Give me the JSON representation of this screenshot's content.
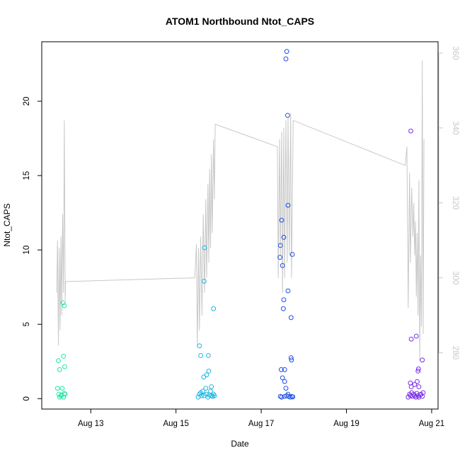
{
  "chart_data": {
    "type": "scatter",
    "title": "ATOM1 Northbound Ntot_CAPS",
    "xlabel": "Date",
    "ylabel": "Ntot_CAPS",
    "x_tick_labels": [
      "Aug 13",
      "Aug 15",
      "Aug 17",
      "Aug 19",
      "Aug 21"
    ],
    "x_ticks_day": [
      13,
      15,
      17,
      19,
      21
    ],
    "xlim_day": [
      11.85,
      21.15
    ],
    "ylim": [
      -0.7,
      24.0
    ],
    "y_ticks": [
      0,
      5,
      10,
      15,
      20
    ],
    "y2_ticks": [
      280,
      300,
      320,
      340,
      360
    ],
    "y2lim": [
      265,
      363
    ],
    "secondary_line_color": "#c8c8c8",
    "series": [
      {
        "color": "#22e6a8",
        "points": [
          [
            12.22,
            0.7
          ],
          [
            12.27,
            0.1
          ],
          [
            12.25,
            0.3
          ],
          [
            12.3,
            0.2
          ],
          [
            12.33,
            0.7
          ],
          [
            12.36,
            0.1
          ],
          [
            12.38,
            0.35
          ],
          [
            12.4,
            0.3
          ],
          [
            12.24,
            2.55
          ],
          [
            12.27,
            1.95
          ],
          [
            12.36,
            2.85
          ],
          [
            12.39,
            2.15
          ],
          [
            12.35,
            6.45
          ],
          [
            12.38,
            6.25
          ],
          [
            12.31,
            0.25
          ]
        ]
      },
      {
        "color": "#1fb5e3",
        "points": [
          [
            15.52,
            0.1
          ],
          [
            15.55,
            0.3
          ],
          [
            15.58,
            0.4
          ],
          [
            15.6,
            0.2
          ],
          [
            15.63,
            0.5
          ],
          [
            15.66,
            0.2
          ],
          [
            15.7,
            0.7
          ],
          [
            15.72,
            0.3
          ],
          [
            15.75,
            0.1
          ],
          [
            15.78,
            0.25
          ],
          [
            15.81,
            0.5
          ],
          [
            15.83,
            0.2
          ],
          [
            15.86,
            0.15
          ],
          [
            15.88,
            0.3
          ],
          [
            15.9,
            0.2
          ],
          [
            15.55,
            3.55
          ],
          [
            15.58,
            2.9
          ],
          [
            15.65,
            1.45
          ],
          [
            15.72,
            1.6
          ],
          [
            15.77,
            1.85
          ],
          [
            15.76,
            2.9
          ],
          [
            15.83,
            0.8
          ],
          [
            15.67,
            10.15
          ],
          [
            15.66,
            7.9
          ],
          [
            15.88,
            6.05
          ]
        ]
      },
      {
        "color": "#1f4fe6",
        "points": [
          [
            17.45,
            0.15
          ],
          [
            17.48,
            0.1
          ],
          [
            17.55,
            0.15
          ],
          [
            17.6,
            0.2
          ],
          [
            17.64,
            0.15
          ],
          [
            17.68,
            0.1
          ],
          [
            17.72,
            0.15
          ],
          [
            17.74,
            0.12
          ],
          [
            17.47,
            1.95
          ],
          [
            17.55,
            1.95
          ],
          [
            17.5,
            1.4
          ],
          [
            17.55,
            1.15
          ],
          [
            17.58,
            0.7
          ],
          [
            17.63,
            0.3
          ],
          [
            17.7,
            2.75
          ],
          [
            17.71,
            2.6
          ],
          [
            17.45,
            10.3
          ],
          [
            17.44,
            9.5
          ],
          [
            17.5,
            8.95
          ],
          [
            17.48,
            12.0
          ],
          [
            17.53,
            10.85
          ],
          [
            17.53,
            6.65
          ],
          [
            17.52,
            6.05
          ],
          [
            17.63,
            7.25
          ],
          [
            17.7,
            5.45
          ],
          [
            17.73,
            9.7
          ],
          [
            17.63,
            13.0
          ],
          [
            17.62,
            19.05
          ],
          [
            17.58,
            22.85
          ],
          [
            17.6,
            23.35
          ]
        ]
      },
      {
        "color": "#7a30e6",
        "points": [
          [
            20.45,
            0.1
          ],
          [
            20.48,
            0.3
          ],
          [
            20.5,
            0.2
          ],
          [
            20.53,
            0.4
          ],
          [
            20.55,
            0.15
          ],
          [
            20.58,
            0.3
          ],
          [
            20.6,
            0.2
          ],
          [
            20.63,
            0.1
          ],
          [
            20.65,
            0.35
          ],
          [
            20.68,
            0.2
          ],
          [
            20.7,
            0.1
          ],
          [
            20.73,
            0.25
          ],
          [
            20.75,
            0.3
          ],
          [
            20.78,
            0.15
          ],
          [
            20.8,
            0.4
          ],
          [
            20.5,
            1.05
          ],
          [
            20.52,
            0.8
          ],
          [
            20.6,
            0.95
          ],
          [
            20.66,
            1.15
          ],
          [
            20.7,
            0.8
          ],
          [
            20.68,
            1.85
          ],
          [
            20.69,
            2.0
          ],
          [
            20.78,
            2.6
          ],
          [
            20.52,
            4.0
          ],
          [
            20.64,
            4.2
          ],
          [
            20.51,
            18.0
          ]
        ]
      }
    ],
    "secondary_line": [
      [
        12.2,
        296
      ],
      [
        12.22,
        310
      ],
      [
        12.24,
        282
      ],
      [
        12.26,
        308
      ],
      [
        12.28,
        286
      ],
      [
        12.3,
        311
      ],
      [
        12.32,
        290
      ],
      [
        12.34,
        317
      ],
      [
        12.36,
        296
      ],
      [
        12.38,
        342
      ],
      [
        12.4,
        294
      ],
      [
        12.41,
        299
      ],
      [
        15.44,
        300
      ],
      [
        15.48,
        309
      ],
      [
        15.5,
        282
      ],
      [
        15.53,
        308
      ],
      [
        15.55,
        286
      ],
      [
        15.58,
        311
      ],
      [
        15.61,
        290
      ],
      [
        15.64,
        317
      ],
      [
        15.67,
        296
      ],
      [
        15.7,
        321
      ],
      [
        15.72,
        300
      ],
      [
        15.75,
        325
      ],
      [
        15.77,
        304
      ],
      [
        15.79,
        329
      ],
      [
        15.81,
        308
      ],
      [
        15.83,
        333
      ],
      [
        15.85,
        312
      ],
      [
        15.88,
        337
      ],
      [
        15.9,
        321
      ],
      [
        15.92,
        341
      ],
      [
        17.38,
        335
      ],
      [
        17.4,
        300
      ],
      [
        17.43,
        337
      ],
      [
        17.45,
        306
      ],
      [
        17.48,
        339
      ],
      [
        17.5,
        296
      ],
      [
        17.53,
        340
      ],
      [
        17.55,
        300
      ],
      [
        17.58,
        342
      ],
      [
        17.61,
        304
      ],
      [
        17.63,
        343
      ],
      [
        17.66,
        306
      ],
      [
        17.69,
        344
      ],
      [
        17.71,
        300
      ],
      [
        17.75,
        342
      ],
      [
        20.38,
        330
      ],
      [
        20.42,
        335
      ],
      [
        20.45,
        292
      ],
      [
        20.48,
        328
      ],
      [
        20.5,
        304
      ],
      [
        20.53,
        324
      ],
      [
        20.56,
        311
      ],
      [
        20.58,
        320
      ],
      [
        20.6,
        306
      ],
      [
        20.62,
        315
      ],
      [
        20.64,
        295
      ],
      [
        20.66,
        312
      ],
      [
        20.68,
        290
      ],
      [
        20.7,
        326
      ],
      [
        20.72,
        278
      ],
      [
        20.74,
        306
      ],
      [
        20.76,
        287
      ],
      [
        20.78,
        358
      ],
      [
        20.8,
        285
      ],
      [
        20.82,
        337
      ]
    ]
  }
}
